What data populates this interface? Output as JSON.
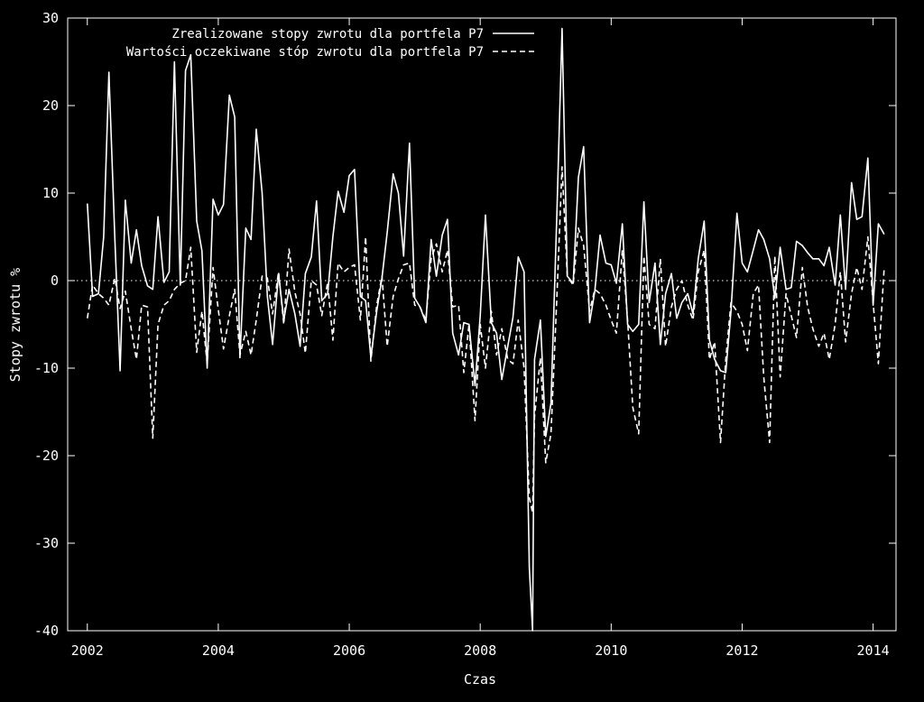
{
  "chart_data": {
    "type": "line",
    "xlabel": "Czas",
    "ylabel": "Stopy zwrotu %",
    "xlim": [
      2001.7,
      2014.35
    ],
    "ylim": [
      -40,
      30
    ],
    "x_ticks": [
      2002,
      2004,
      2006,
      2008,
      2010,
      2012,
      2014
    ],
    "y_ticks": [
      -40,
      -30,
      -20,
      -10,
      0,
      10,
      20,
      30
    ],
    "zero_line": true,
    "grid": false,
    "legend_position": "top-center",
    "series": [
      {
        "name": "Zrealizowane stopy zwrotu dla portfela P7",
        "style": "solid",
        "color": "#ffffff",
        "points": [
          [
            2002.0,
            8.8
          ],
          [
            2002.08,
            -1.8
          ],
          [
            2002.17,
            -1.5
          ],
          [
            2002.25,
            5.0
          ],
          [
            2002.33,
            23.8
          ],
          [
            2002.42,
            5.0
          ],
          [
            2002.5,
            -10.3
          ],
          [
            2002.58,
            9.2
          ],
          [
            2002.67,
            2.0
          ],
          [
            2002.75,
            5.8
          ],
          [
            2002.83,
            1.7
          ],
          [
            2002.92,
            -0.6
          ],
          [
            2003.0,
            -1.0
          ],
          [
            2003.08,
            7.3
          ],
          [
            2003.17,
            -0.2
          ],
          [
            2003.25,
            1.0
          ],
          [
            2003.33,
            25.0
          ],
          [
            2003.42,
            -0.5
          ],
          [
            2003.5,
            24.0
          ],
          [
            2003.58,
            25.8
          ],
          [
            2003.67,
            6.8
          ],
          [
            2003.75,
            3.4
          ],
          [
            2003.83,
            -10.0
          ],
          [
            2003.92,
            9.3
          ],
          [
            2004.0,
            7.5
          ],
          [
            2004.08,
            8.7
          ],
          [
            2004.17,
            21.2
          ],
          [
            2004.25,
            18.7
          ],
          [
            2004.33,
            -8.8
          ],
          [
            2004.42,
            6.0
          ],
          [
            2004.5,
            4.7
          ],
          [
            2004.58,
            17.3
          ],
          [
            2004.67,
            10.0
          ],
          [
            2004.75,
            -1.8
          ],
          [
            2004.83,
            -7.3
          ],
          [
            2004.92,
            0.8
          ],
          [
            2005.0,
            -4.5
          ],
          [
            2005.08,
            -1.0
          ],
          [
            2005.17,
            -3.8
          ],
          [
            2005.25,
            -7.5
          ],
          [
            2005.33,
            0.8
          ],
          [
            2005.42,
            2.7
          ],
          [
            2005.5,
            9.1
          ],
          [
            2005.58,
            -2.3
          ],
          [
            2005.67,
            -1.5
          ],
          [
            2005.75,
            5.0
          ],
          [
            2005.83,
            10.2
          ],
          [
            2005.92,
            7.8
          ],
          [
            2006.0,
            12.0
          ],
          [
            2006.08,
            12.7
          ],
          [
            2006.17,
            -1.8
          ],
          [
            2006.25,
            -2.3
          ],
          [
            2006.33,
            -8.8
          ],
          [
            2006.42,
            -3.5
          ],
          [
            2006.5,
            0.3
          ],
          [
            2006.58,
            5.5
          ],
          [
            2006.67,
            12.2
          ],
          [
            2006.75,
            10.0
          ],
          [
            2006.83,
            2.8
          ],
          [
            2006.92,
            15.7
          ],
          [
            2007.0,
            -2.0
          ],
          [
            2007.08,
            -3.0
          ],
          [
            2007.17,
            -4.8
          ],
          [
            2007.25,
            4.7
          ],
          [
            2007.33,
            0.5
          ],
          [
            2007.42,
            5.2
          ],
          [
            2007.5,
            7.0
          ],
          [
            2007.58,
            -6.0
          ],
          [
            2007.67,
            -8.5
          ],
          [
            2007.75,
            -4.8
          ],
          [
            2007.83,
            -5.0
          ],
          [
            2007.92,
            -12.0
          ],
          [
            2008.0,
            -4.0
          ],
          [
            2008.08,
            7.5
          ],
          [
            2008.17,
            -4.8
          ],
          [
            2008.25,
            -6.0
          ],
          [
            2008.33,
            -11.3
          ],
          [
            2008.42,
            -7.5
          ],
          [
            2008.5,
            -4.2
          ],
          [
            2008.58,
            2.7
          ],
          [
            2008.67,
            1.0
          ],
          [
            2008.75,
            -32.8
          ],
          [
            2008.8,
            -40.0
          ],
          [
            2008.83,
            -9.0
          ],
          [
            2008.92,
            -4.5
          ],
          [
            2009.0,
            -17.8
          ],
          [
            2009.08,
            -14.0
          ],
          [
            2009.17,
            7.5
          ],
          [
            2009.25,
            28.8
          ],
          [
            2009.33,
            0.5
          ],
          [
            2009.42,
            -0.3
          ],
          [
            2009.5,
            11.8
          ],
          [
            2009.58,
            15.3
          ],
          [
            2009.67,
            -4.8
          ],
          [
            2009.75,
            -1.2
          ],
          [
            2009.83,
            5.2
          ],
          [
            2009.92,
            2.0
          ],
          [
            2010.0,
            1.8
          ],
          [
            2010.08,
            -0.3
          ],
          [
            2010.17,
            6.5
          ],
          [
            2010.25,
            -5.0
          ],
          [
            2010.33,
            -5.8
          ],
          [
            2010.42,
            -5.0
          ],
          [
            2010.5,
            9.0
          ],
          [
            2010.58,
            -2.5
          ],
          [
            2010.67,
            2.0
          ],
          [
            2010.75,
            -7.3
          ],
          [
            2010.83,
            -1.5
          ],
          [
            2010.92,
            0.8
          ],
          [
            2011.0,
            -4.3
          ],
          [
            2011.08,
            -2.5
          ],
          [
            2011.17,
            -1.5
          ],
          [
            2011.25,
            -3.8
          ],
          [
            2011.33,
            2.5
          ],
          [
            2011.42,
            6.8
          ],
          [
            2011.5,
            -6.8
          ],
          [
            2011.58,
            -9.0
          ],
          [
            2011.67,
            -10.3
          ],
          [
            2011.75,
            -10.5
          ],
          [
            2011.83,
            -3.5
          ],
          [
            2011.92,
            7.7
          ],
          [
            2012.0,
            2.0
          ],
          [
            2012.08,
            1.0
          ],
          [
            2012.17,
            3.5
          ],
          [
            2012.25,
            5.8
          ],
          [
            2012.33,
            4.7
          ],
          [
            2012.42,
            2.5
          ],
          [
            2012.5,
            -2.0
          ],
          [
            2012.58,
            3.8
          ],
          [
            2012.67,
            -1.0
          ],
          [
            2012.75,
            -0.8
          ],
          [
            2012.83,
            4.5
          ],
          [
            2012.92,
            4.0
          ],
          [
            2013.0,
            3.2
          ],
          [
            2013.08,
            2.5
          ],
          [
            2013.17,
            2.5
          ],
          [
            2013.25,
            1.7
          ],
          [
            2013.33,
            3.8
          ],
          [
            2013.42,
            -0.5
          ],
          [
            2013.5,
            7.5
          ],
          [
            2013.58,
            -1.0
          ],
          [
            2013.67,
            11.2
          ],
          [
            2013.75,
            7.0
          ],
          [
            2013.83,
            7.3
          ],
          [
            2013.92,
            14.0
          ],
          [
            2014.0,
            -2.8
          ],
          [
            2014.08,
            6.5
          ],
          [
            2014.17,
            5.3
          ]
        ]
      },
      {
        "name": "Wartości oczekiwane stóp zwrotu dla portfela P7",
        "style": "dashed",
        "color": "#ffffff",
        "points": [
          [
            2002.0,
            -4.3
          ],
          [
            2002.08,
            -0.5
          ],
          [
            2002.17,
            -1.5
          ],
          [
            2002.25,
            -2.0
          ],
          [
            2002.33,
            -2.8
          ],
          [
            2002.42,
            0.3
          ],
          [
            2002.5,
            -3.2
          ],
          [
            2002.58,
            -1.2
          ],
          [
            2002.67,
            -5.5
          ],
          [
            2002.75,
            -9.0
          ],
          [
            2002.83,
            -2.8
          ],
          [
            2002.92,
            -3.0
          ],
          [
            2003.0,
            -18.0
          ],
          [
            2003.08,
            -5.0
          ],
          [
            2003.17,
            -2.8
          ],
          [
            2003.25,
            -2.3
          ],
          [
            2003.33,
            -1.0
          ],
          [
            2003.42,
            -0.3
          ],
          [
            2003.5,
            0.0
          ],
          [
            2003.58,
            3.8
          ],
          [
            2003.67,
            -8.2
          ],
          [
            2003.75,
            -3.5
          ],
          [
            2003.83,
            -9.5
          ],
          [
            2003.92,
            1.5
          ],
          [
            2004.0,
            -3.3
          ],
          [
            2004.08,
            -7.8
          ],
          [
            2004.17,
            -4.0
          ],
          [
            2004.25,
            -1.0
          ],
          [
            2004.33,
            -8.5
          ],
          [
            2004.42,
            -5.8
          ],
          [
            2004.5,
            -8.5
          ],
          [
            2004.58,
            -4.5
          ],
          [
            2004.67,
            0.5
          ],
          [
            2004.75,
            0.3
          ],
          [
            2004.83,
            -3.8
          ],
          [
            2004.92,
            1.0
          ],
          [
            2005.0,
            -5.0
          ],
          [
            2005.08,
            3.6
          ],
          [
            2005.17,
            -1.3
          ],
          [
            2005.25,
            -3.8
          ],
          [
            2005.33,
            -8.3
          ],
          [
            2005.42,
            0.0
          ],
          [
            2005.5,
            -0.5
          ],
          [
            2005.58,
            -4.0
          ],
          [
            2005.67,
            -0.2
          ],
          [
            2005.75,
            -6.8
          ],
          [
            2005.83,
            2.0
          ],
          [
            2005.92,
            1.0
          ],
          [
            2006.0,
            1.5
          ],
          [
            2006.08,
            1.8
          ],
          [
            2006.17,
            -4.5
          ],
          [
            2006.25,
            5.0
          ],
          [
            2006.33,
            -9.2
          ],
          [
            2006.42,
            -2.8
          ],
          [
            2006.5,
            0.5
          ],
          [
            2006.58,
            -7.5
          ],
          [
            2006.67,
            -1.8
          ],
          [
            2006.75,
            0.2
          ],
          [
            2006.83,
            1.8
          ],
          [
            2006.92,
            2.0
          ],
          [
            2007.0,
            -2.8
          ],
          [
            2007.08,
            -3.0
          ],
          [
            2007.17,
            -4.5
          ],
          [
            2007.25,
            2.5
          ],
          [
            2007.33,
            4.2
          ],
          [
            2007.42,
            1.0
          ],
          [
            2007.5,
            3.5
          ],
          [
            2007.58,
            -3.0
          ],
          [
            2007.67,
            -2.8
          ],
          [
            2007.75,
            -10.5
          ],
          [
            2007.83,
            -5.0
          ],
          [
            2007.92,
            -16.0
          ],
          [
            2008.0,
            -5.0
          ],
          [
            2008.08,
            -10.0
          ],
          [
            2008.17,
            -3.5
          ],
          [
            2008.25,
            -8.5
          ],
          [
            2008.33,
            -5.5
          ],
          [
            2008.42,
            -9.0
          ],
          [
            2008.5,
            -9.5
          ],
          [
            2008.58,
            -4.5
          ],
          [
            2008.67,
            -10.0
          ],
          [
            2008.75,
            -24.8
          ],
          [
            2008.8,
            -26.5
          ],
          [
            2008.83,
            -15.5
          ],
          [
            2008.92,
            -8.8
          ],
          [
            2009.0,
            -20.8
          ],
          [
            2009.08,
            -17.5
          ],
          [
            2009.17,
            -2.0
          ],
          [
            2009.25,
            13.0
          ],
          [
            2009.33,
            0.5
          ],
          [
            2009.42,
            -0.5
          ],
          [
            2009.5,
            6.0
          ],
          [
            2009.58,
            4.0
          ],
          [
            2009.67,
            -3.5
          ],
          [
            2009.75,
            -1.0
          ],
          [
            2009.83,
            -1.5
          ],
          [
            2009.92,
            -2.8
          ],
          [
            2010.0,
            -4.5
          ],
          [
            2010.08,
            -6.0
          ],
          [
            2010.17,
            3.5
          ],
          [
            2010.25,
            -4.5
          ],
          [
            2010.33,
            -14.5
          ],
          [
            2010.42,
            -17.5
          ],
          [
            2010.5,
            2.8
          ],
          [
            2010.58,
            -5.0
          ],
          [
            2010.67,
            -5.5
          ],
          [
            2010.75,
            2.5
          ],
          [
            2010.83,
            -7.5
          ],
          [
            2010.92,
            -3.0
          ],
          [
            2011.0,
            -1.0
          ],
          [
            2011.08,
            0.0
          ],
          [
            2011.17,
            -2.8
          ],
          [
            2011.25,
            -4.5
          ],
          [
            2011.33,
            1.0
          ],
          [
            2011.42,
            3.5
          ],
          [
            2011.5,
            -9.0
          ],
          [
            2011.58,
            -7.0
          ],
          [
            2011.67,
            -18.5
          ],
          [
            2011.75,
            -9.0
          ],
          [
            2011.83,
            -2.5
          ],
          [
            2011.92,
            -3.5
          ],
          [
            2012.0,
            -5.0
          ],
          [
            2012.08,
            -8.0
          ],
          [
            2012.17,
            -1.5
          ],
          [
            2012.25,
            -0.5
          ],
          [
            2012.33,
            -11.0
          ],
          [
            2012.42,
            -18.5
          ],
          [
            2012.5,
            2.8
          ],
          [
            2012.58,
            -11.0
          ],
          [
            2012.67,
            -1.5
          ],
          [
            2012.75,
            -4.0
          ],
          [
            2012.83,
            -6.5
          ],
          [
            2012.92,
            1.5
          ],
          [
            2013.0,
            -3.0
          ],
          [
            2013.08,
            -5.5
          ],
          [
            2013.17,
            -7.5
          ],
          [
            2013.25,
            -6.0
          ],
          [
            2013.33,
            -9.0
          ],
          [
            2013.42,
            -5.0
          ],
          [
            2013.5,
            1.0
          ],
          [
            2013.58,
            -7.0
          ],
          [
            2013.67,
            -1.5
          ],
          [
            2013.75,
            1.5
          ],
          [
            2013.83,
            -1.0
          ],
          [
            2013.92,
            5.0
          ],
          [
            2014.0,
            -2.5
          ],
          [
            2014.08,
            -9.5
          ],
          [
            2014.17,
            1.5
          ]
        ]
      }
    ]
  }
}
